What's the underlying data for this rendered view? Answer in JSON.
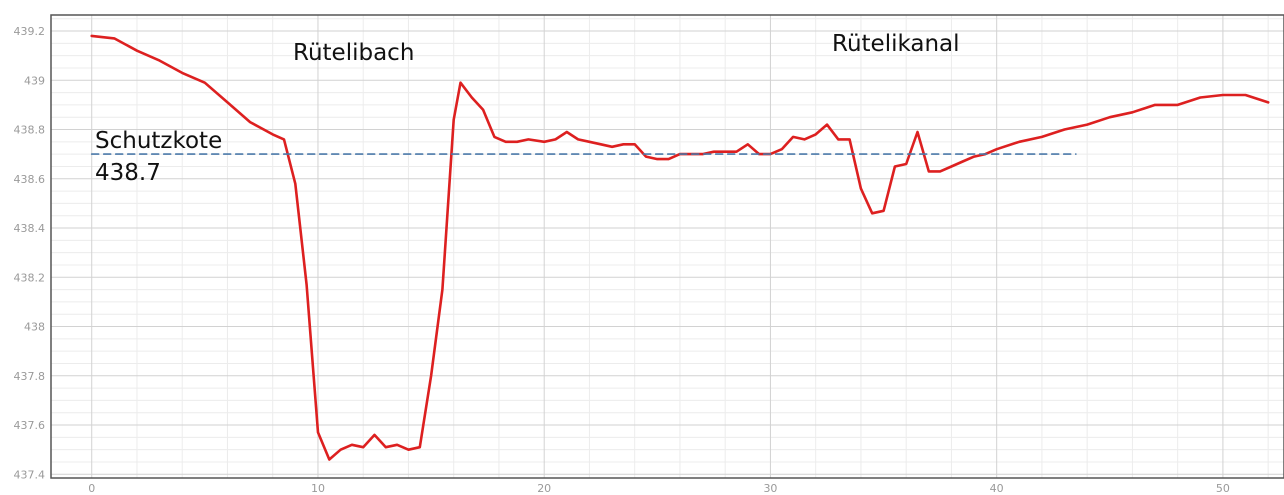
{
  "chart_data": {
    "type": "line",
    "x": [
      0,
      1,
      2,
      3,
      4,
      5,
      6,
      7,
      8,
      8.5,
      9,
      9.5,
      10,
      10.5,
      11,
      11.5,
      12,
      12.5,
      13,
      13.5,
      14,
      14.5,
      15,
      15.5,
      16,
      16.3,
      16.8,
      17.3,
      17.8,
      18.3,
      18.8,
      19.3,
      20,
      20.5,
      21,
      21.5,
      22,
      22.5,
      23,
      23.5,
      24,
      24.5,
      25,
      25.5,
      26,
      26.5,
      27,
      27.5,
      28,
      28.5,
      29,
      29.5,
      30,
      30.5,
      31,
      31.5,
      32,
      32.5,
      33,
      33.5,
      34,
      34.5,
      35,
      35.5,
      36,
      36.5,
      37,
      37.5,
      38,
      38.5,
      39,
      39.5,
      40,
      41,
      42,
      43,
      44,
      45,
      46,
      47,
      48,
      49,
      50,
      51,
      52
    ],
    "series": [
      {
        "color": "#dd2020",
        "values": [
          439.18,
          439.17,
          439.12,
          439.08,
          439.03,
          438.99,
          438.91,
          438.83,
          438.78,
          438.76,
          438.58,
          438.17,
          437.57,
          437.46,
          437.5,
          437.52,
          437.51,
          437.56,
          437.51,
          437.52,
          437.5,
          437.51,
          437.8,
          438.15,
          438.84,
          438.99,
          438.93,
          438.88,
          438.77,
          438.75,
          438.75,
          438.76,
          438.75,
          438.76,
          438.79,
          438.76,
          438.75,
          438.74,
          438.73,
          438.74,
          438.74,
          438.69,
          438.68,
          438.68,
          438.7,
          438.7,
          438.7,
          438.71,
          438.71,
          438.71,
          438.74,
          438.7,
          438.7,
          438.72,
          438.77,
          438.76,
          438.78,
          438.82,
          438.76,
          438.76,
          438.56,
          438.46,
          438.47,
          438.65,
          438.66,
          438.79,
          438.63,
          438.63,
          438.65,
          438.67,
          438.69,
          438.7,
          438.72,
          438.75,
          438.77,
          438.8,
          438.82,
          438.85,
          438.87,
          438.9,
          438.9,
          438.93,
          438.94,
          438.94,
          438.91
        ]
      },
      {
        "color": "#4a78a8",
        "dashed": true,
        "x": [
          0,
          43.5
        ],
        "values": [
          438.7,
          438.7
        ]
      }
    ],
    "xlim": [
      -1.8,
      52.7
    ],
    "ylim": [
      437.385,
      439.265
    ],
    "xticks": [
      0,
      10,
      20,
      30,
      40,
      50
    ],
    "yticks": [
      437.4,
      437.6,
      437.8,
      438,
      438.2,
      438.4,
      438.6,
      438.8,
      439,
      439.2
    ],
    "xtick_labels": [
      "0",
      "10",
      "20",
      "30",
      "40",
      "50"
    ],
    "ytick_labels": [
      "437.4",
      "437.6",
      "437.8",
      "438",
      "438.2",
      "438.4",
      "438.6",
      "438.8",
      "439",
      "439.2"
    ],
    "grid": true
  },
  "annotations": {
    "left_label": "Rütelibach",
    "right_label": "Rütelikanal",
    "schutzkote_label": "Schutzkote",
    "schutzkote_value": "438.7"
  }
}
